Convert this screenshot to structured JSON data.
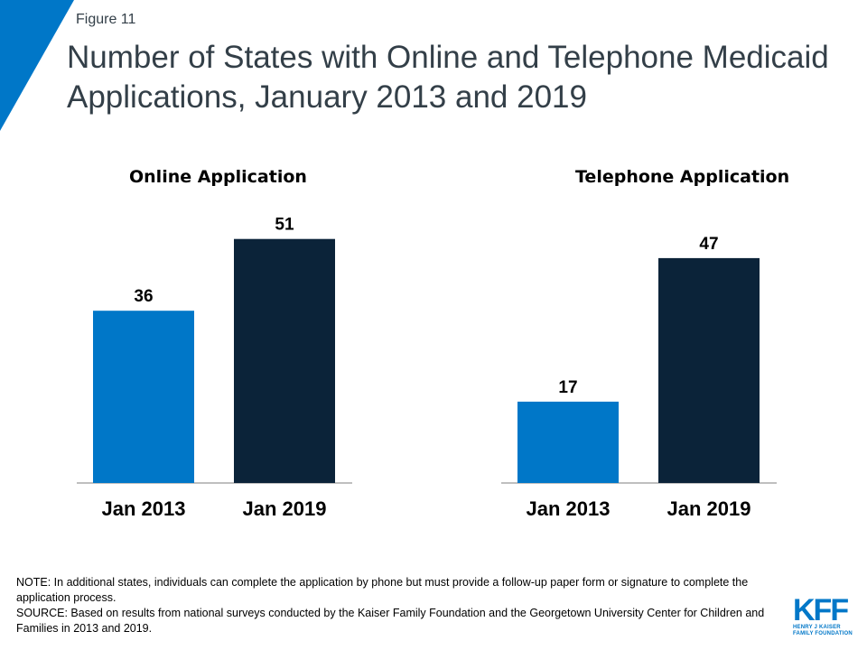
{
  "header": {
    "figure_label": "Figure 11",
    "title": "Number of States with Online and Telephone Medicaid Applications, January 2013 and 2019"
  },
  "chart_data": {
    "type": "bar",
    "panels": [
      {
        "title": "Online Application",
        "categories": [
          "Jan 2013",
          "Jan 2019"
        ],
        "values": [
          36,
          51
        ],
        "colors": [
          "#0077c8",
          "#0b2339"
        ]
      },
      {
        "title": "Telephone Application",
        "categories": [
          "Jan 2013",
          "Jan 2019"
        ],
        "values": [
          17,
          47
        ],
        "colors": [
          "#0077c8",
          "#0b2339"
        ]
      }
    ],
    "ylim": [
      0,
      60
    ],
    "grid": false
  },
  "notes": {
    "note": "NOTE: In additional states, individuals can complete the application by phone but must provide a follow-up paper form or signature to complete the application process.",
    "source": "SOURCE: Based on results from national surveys conducted by the Kaiser Family Foundation and the Georgetown University Center for Children and Families in 2013 and 2019."
  },
  "logo": {
    "mark": "KFF",
    "line1": "HENRY J KAISER",
    "line2": "FAMILY FOUNDATION",
    "color": "#0077c8"
  },
  "colors": {
    "accent": "#0077c8",
    "dark": "#0b2339",
    "title_text": "#333f48"
  }
}
